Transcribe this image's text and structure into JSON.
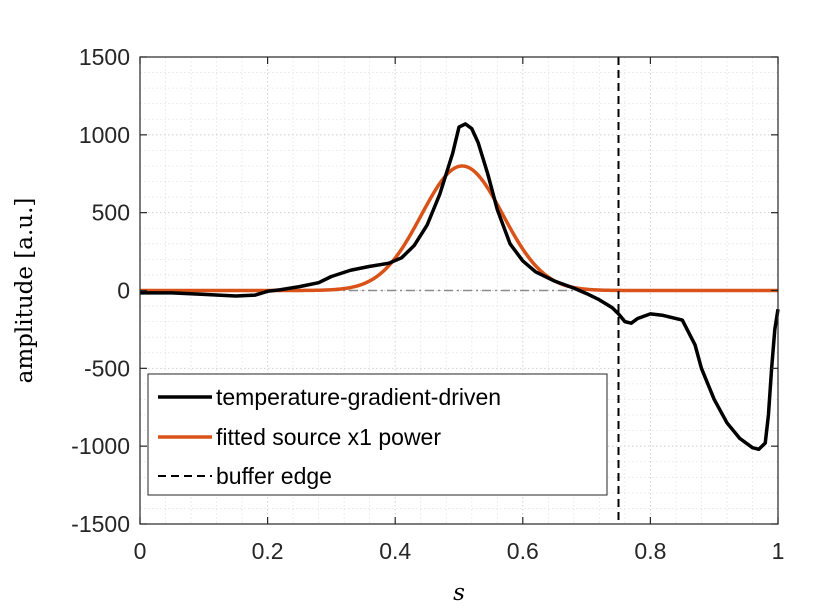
{
  "chart_data": {
    "type": "line",
    "title": "",
    "xlabel": "s",
    "ylabel": "amplitude [a.u.]",
    "xlim": [
      0,
      1
    ],
    "ylim": [
      -1500,
      1500
    ],
    "xticks": [
      0,
      0.2,
      0.4,
      0.6,
      0.8,
      1
    ],
    "xtick_labels": [
      "0",
      "0.2",
      "0.4",
      "0.6",
      "0.8",
      "1"
    ],
    "yticks": [
      -1500,
      -1000,
      -500,
      0,
      500,
      1000,
      1500
    ],
    "ytick_labels": [
      "-1500",
      "-1000",
      "-500",
      "0",
      "500",
      "1000",
      "1500"
    ],
    "grid": "on (major and minor, dotted)",
    "legend_position": "lower-left",
    "series": [
      {
        "name": "temperature-gradient-driven",
        "color": "#000000",
        "style": "solid",
        "x": [
          0,
          0.05,
          0.1,
          0.15,
          0.18,
          0.2,
          0.22,
          0.25,
          0.28,
          0.3,
          0.33,
          0.36,
          0.39,
          0.41,
          0.43,
          0.45,
          0.47,
          0.49,
          0.5,
          0.51,
          0.52,
          0.53,
          0.545,
          0.56,
          0.58,
          0.6,
          0.62,
          0.65,
          0.68,
          0.7,
          0.72,
          0.74,
          0.75,
          0.76,
          0.77,
          0.78,
          0.8,
          0.82,
          0.85,
          0.87,
          0.88,
          0.9,
          0.92,
          0.94,
          0.96,
          0.97,
          0.98,
          0.985,
          0.99,
          0.995,
          1.0
        ],
        "y": [
          -15,
          -15,
          -25,
          -35,
          -30,
          -5,
          5,
          25,
          50,
          90,
          130,
          155,
          175,
          210,
          290,
          420,
          620,
          880,
          1050,
          1070,
          1040,
          950,
          750,
          520,
          300,
          190,
          120,
          60,
          15,
          -20,
          -60,
          -110,
          -150,
          -200,
          -210,
          -180,
          -150,
          -160,
          -190,
          -350,
          -500,
          -700,
          -850,
          -950,
          -1010,
          -1020,
          -980,
          -800,
          -500,
          -250,
          -120
        ]
      },
      {
        "name": "fitted source x1 power",
        "color": "#D95319",
        "style": "solid",
        "gaussian": {
          "amplitude": 800,
          "center": 0.505,
          "sigma": 0.064
        }
      },
      {
        "name": "buffer edge",
        "color": "#000000",
        "style": "dashed",
        "vertical_x": 0.75
      }
    ],
    "reference_line": {
      "y": 0,
      "color": "#8c8c8c",
      "style": "dash-dot"
    }
  }
}
